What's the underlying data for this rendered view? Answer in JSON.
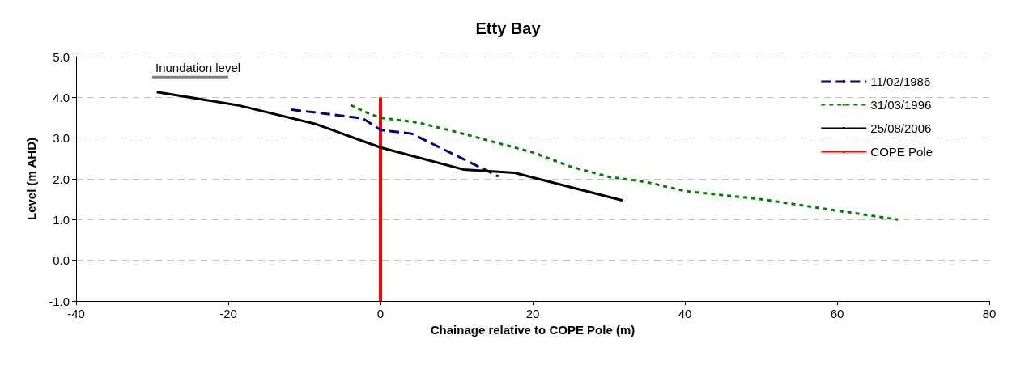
{
  "chart_data": {
    "type": "line",
    "title": "Etty Bay",
    "xlabel": "Chainage relative to COPE Pole (m)",
    "ylabel": "Level (m AHD)",
    "xlim": [
      -40,
      80
    ],
    "xticks": [
      -40,
      -20,
      0,
      20,
      40,
      60,
      80
    ],
    "ylim": [
      -1,
      5
    ],
    "yticks": [
      {
        "value": -1,
        "label": "-1.0"
      },
      {
        "value": 0,
        "label": "0.0"
      },
      {
        "value": 1,
        "label": "1.0"
      },
      {
        "value": 2,
        "label": "2.0"
      },
      {
        "value": 3,
        "label": "3.0"
      },
      {
        "value": 4,
        "label": "4.0"
      },
      {
        "value": 5,
        "label": "5.0"
      }
    ],
    "grid": "y",
    "legend": "top right",
    "marker": "none",
    "series": [
      {
        "name": "11/02/1986",
        "color": "#000080",
        "line_style": "dashed",
        "x": [
          -11.7,
          -3,
          -2.3,
          0,
          4.1,
          15.5
        ],
        "values": [
          3.7,
          3.5,
          3.48,
          3.2,
          3.11,
          2.06
        ]
      },
      {
        "name": "31/03/1996",
        "color": "#008000",
        "line_style": "dotted",
        "x": [
          -3.9,
          -1.5,
          0,
          5,
          10,
          15,
          20,
          25,
          30,
          35,
          40,
          50,
          60,
          68
        ],
        "values": [
          3.81,
          3.6,
          3.5,
          3.38,
          3.15,
          2.9,
          2.65,
          2.3,
          2.05,
          1.92,
          1.7,
          1.5,
          1.22,
          1.0
        ]
      },
      {
        "name": "25/08/2006",
        "color": "#000000",
        "line_style": "solid",
        "x": [
          -29.4,
          -18.8,
          -8.4,
          0,
          10.9,
          17.6,
          31.8
        ],
        "values": [
          4.13,
          3.81,
          3.34,
          2.77,
          2.23,
          2.15,
          1.47
        ]
      },
      {
        "name": "COPE Pole",
        "color": "#ff0000",
        "line_style": "solid",
        "x": [
          0,
          0
        ],
        "values": [
          -1,
          4
        ]
      },
      {
        "color": "#808080",
        "line_style": "solid",
        "x": [
          -30,
          -20
        ],
        "values": [
          4.5,
          4.5
        ]
      }
    ],
    "annotations": [
      {
        "text": "Inundation level",
        "x": -30,
        "y": 4.5
      }
    ]
  }
}
